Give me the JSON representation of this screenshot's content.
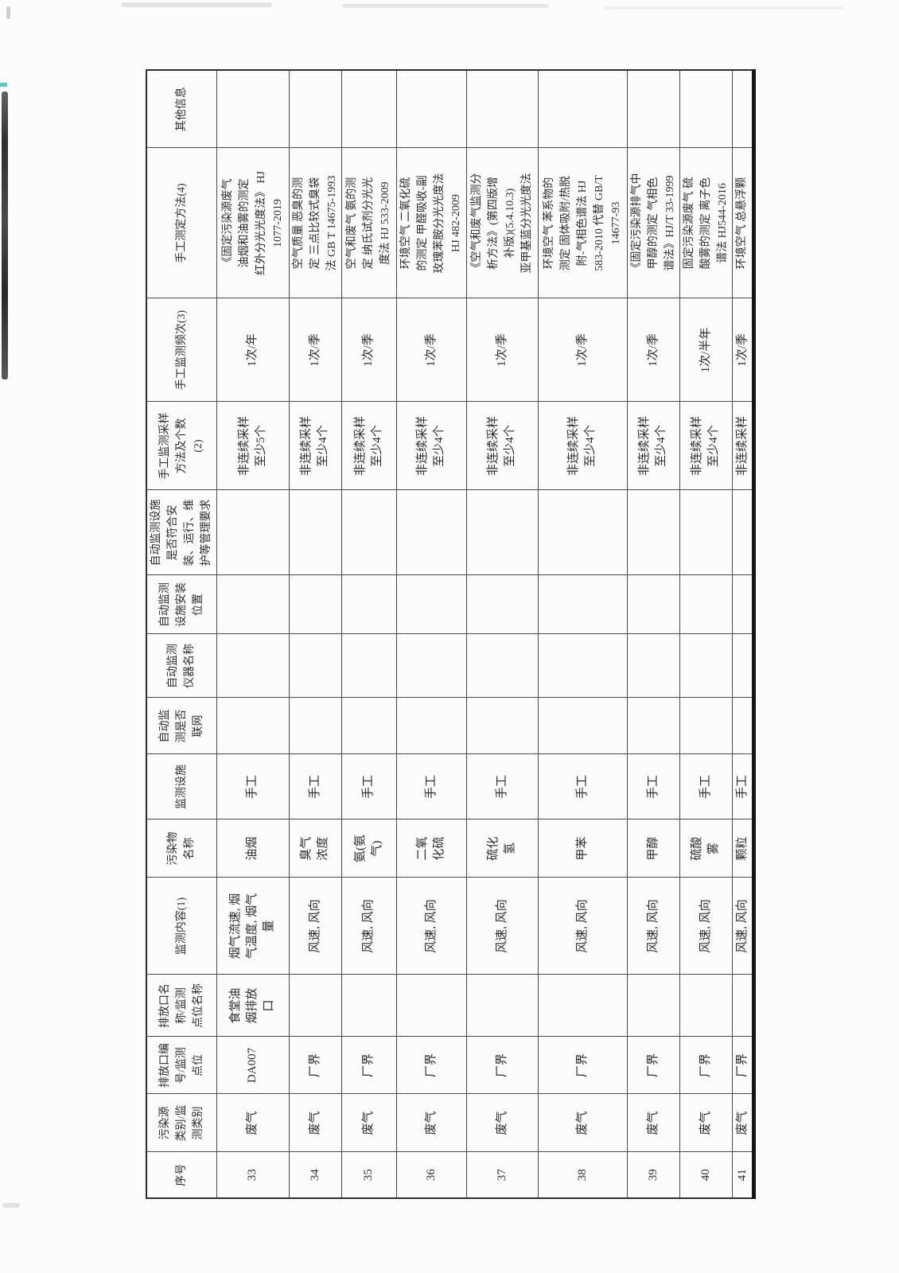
{
  "colors": {
    "ink": "#2d2d2d",
    "grid_line": "#4a4a4a",
    "paper": "#fcfcfb"
  },
  "table": {
    "orientation_note": "table is rotated 90 degrees counter-clockwise on the scanned page",
    "columns": [
      {
        "key": "index",
        "label": "序号"
      },
      {
        "key": "source-category",
        "label": "污染源\n类别/监\n测类别"
      },
      {
        "key": "outlet-id",
        "label": "排放口编\n号/监测\n点位"
      },
      {
        "key": "outlet-name",
        "label": "排放口名\n称/监测\n点位名称"
      },
      {
        "key": "monitor-content",
        "label": "监测内容(1)"
      },
      {
        "key": "pollutant-name",
        "label": "污染物\n名称"
      },
      {
        "key": "monitor-facility",
        "label": "监测设施"
      },
      {
        "key": "auto-networked",
        "label": "自动监\n测是否\n联网"
      },
      {
        "key": "auto-instrument-name",
        "label": "自动监测\n仪器名称"
      },
      {
        "key": "auto-install-position",
        "label": "自动监测\n设施安装\n位置"
      },
      {
        "key": "auto-compliance",
        "label": "自动监测设施\n是否符合安\n装、运行、维\n护等管理要求"
      },
      {
        "key": "manual-sampling-method",
        "label": "手工监测采样\n方法及个数\n(2)"
      },
      {
        "key": "manual-frequency",
        "label": "手工监测频次(3)"
      },
      {
        "key": "manual-method",
        "label": "手工测定方法(4)"
      },
      {
        "key": "other-info",
        "label": "其他信息"
      }
    ],
    "rows": [
      {
        "cells": [
          "33",
          "废气",
          "DA007",
          "食堂油\n烟排放\n口",
          "烟气流速, 烟\n气温度, 烟气\n量",
          "油烟",
          "手工",
          "",
          "",
          "",
          "",
          "非连续采样\n至少5个",
          "1次/年",
          "《固定污染源废气\n油烟和油雾的测定\n红外分光光度法》 HJ\n1077-2019",
          ""
        ]
      },
      {
        "cells": [
          "34",
          "废气",
          "厂界",
          "",
          "风速, 风向",
          "臭气\n浓度",
          "手工",
          "",
          "",
          "",
          "",
          "非连续采样\n至少4个",
          "1次/季",
          "空气质量 恶臭的测\n定 三点比较式臭袋\n法 GB T 14675-1993",
          ""
        ]
      },
      {
        "cells": [
          "35",
          "废气",
          "厂界",
          "",
          "风速, 风向",
          "氨(氨\n气)",
          "手工",
          "",
          "",
          "",
          "",
          "非连续采样\n至少4个",
          "1次/季",
          "空气和废气 氨的测\n定 纳氏试剂分光光\n度法 HJ 533-2009",
          ""
        ]
      },
      {
        "cells": [
          "36",
          "废气",
          "厂界",
          "",
          "风速, 风向",
          "二氧\n化硫",
          "手工",
          "",
          "",
          "",
          "",
          "非连续采样\n至少4个",
          "1次/季",
          "环境空气 二氧化硫\n的测定 甲醛吸收-副\n玫瑰苯胺分光光度法\nHJ 482-2009",
          ""
        ]
      },
      {
        "cells": [
          "37",
          "废气",
          "厂界",
          "",
          "风速, 风向",
          "硫化\n氢",
          "手工",
          "",
          "",
          "",
          "",
          "非连续采样\n至少4个",
          "1次/季",
          "《空气和废气监测分\n析方法》(第四版增\n补版)(5.4.10.3)\n亚甲基蓝分光光度法",
          ""
        ]
      },
      {
        "cells": [
          "38",
          "废气",
          "厂界",
          "",
          "风速, 风向",
          "甲苯",
          "手工",
          "",
          "",
          "",
          "",
          "非连续采样\n至少4个",
          "1次/季",
          "环境空气 苯系物的\n测定 固体吸附/热脱\n附-气相色谱法 HJ\n583-2010 代替 GB/T\n14677-93",
          ""
        ]
      },
      {
        "cells": [
          "39",
          "废气",
          "厂界",
          "",
          "风速, 风向",
          "甲醇",
          "手工",
          "",
          "",
          "",
          "",
          "非连续采样\n至少4个",
          "1次/季",
          "《固定污染源排气中\n甲醇的测定 气相色\n谱法》HJ/T 33-1999",
          ""
        ]
      },
      {
        "cells": [
          "40",
          "废气",
          "厂界",
          "",
          "风速, 风向",
          "硫酸\n雾",
          "手工",
          "",
          "",
          "",
          "",
          "非连续采样\n至少4个",
          "1次/半年",
          "固定污染源废气 硫\n酸雾的测定 离子色\n谱法 HJ544-2016",
          ""
        ]
      },
      {
        "cells": [
          "41",
          "废气",
          "厂界",
          "",
          "风速, 风向",
          "颗粒",
          "手工",
          "",
          "",
          "",
          "",
          "非连续采样",
          "1次/季",
          "环境空气 总悬浮颗",
          ""
        ]
      }
    ]
  }
}
